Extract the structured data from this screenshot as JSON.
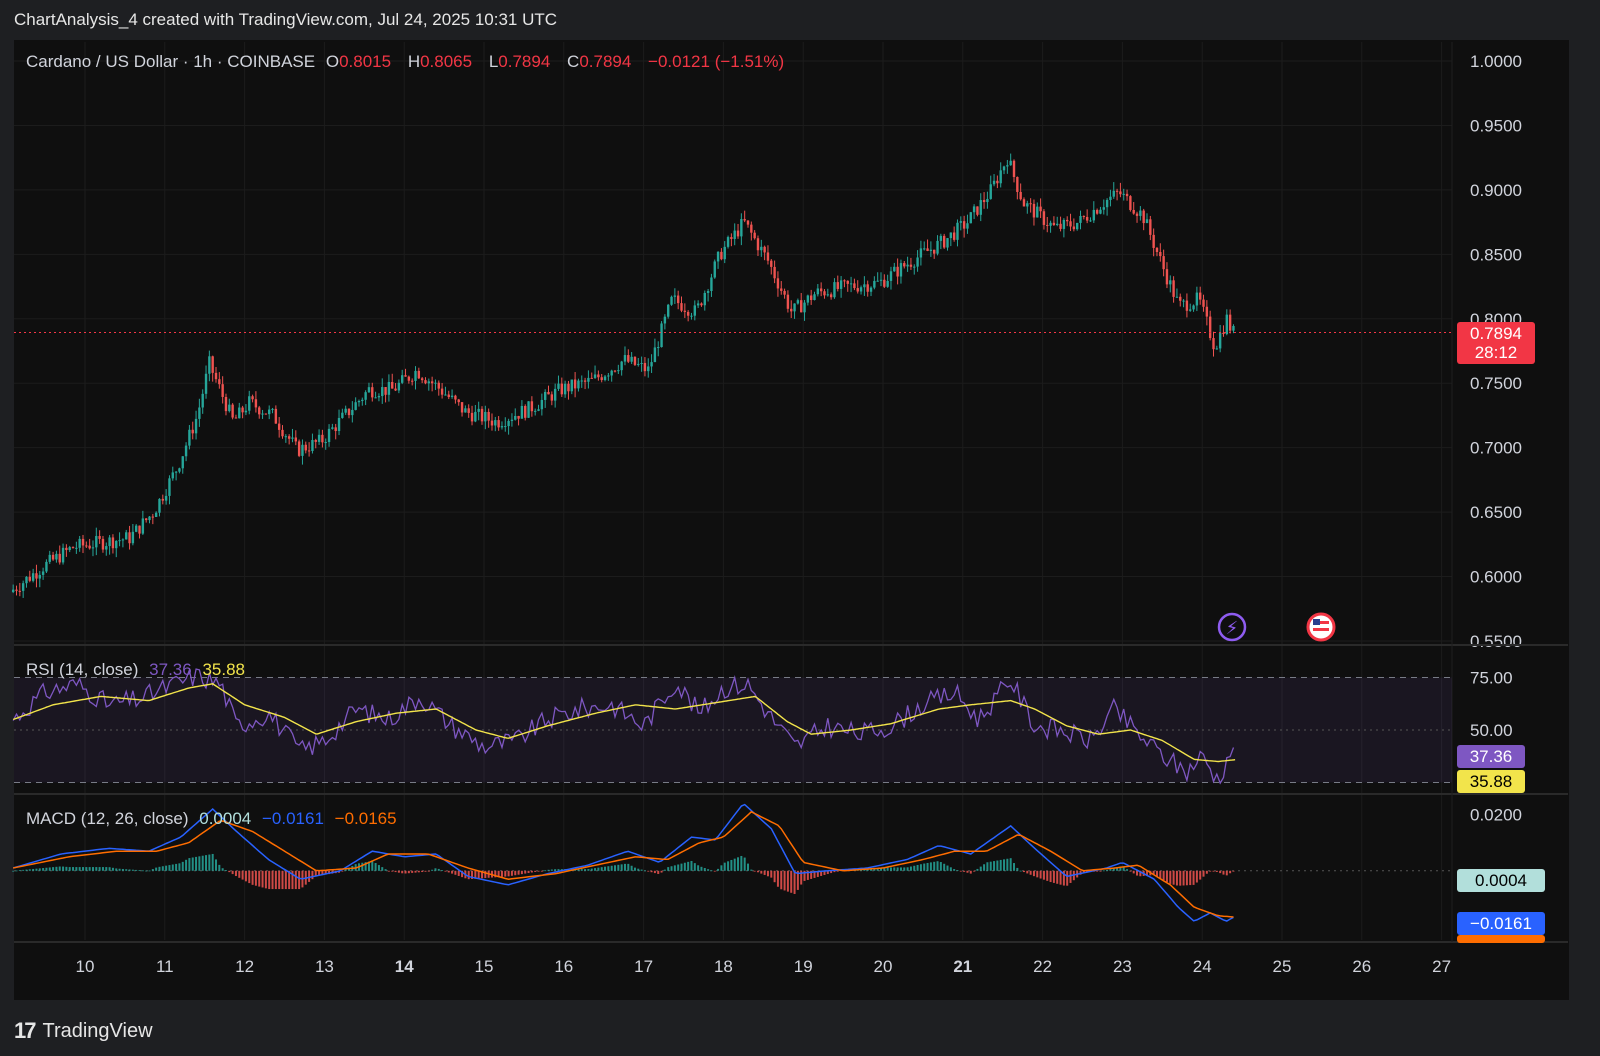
{
  "header": {
    "attribution": "ChartAnalysis_4 created with TradingView.com, Jul 24, 2025 10:31 UTC"
  },
  "legend": {
    "symbol": "Cardano / US Dollar · 1h · COINBASE",
    "o_label": "O",
    "o_value": "0.8015",
    "h_label": "H",
    "h_value": "0.8065",
    "l_label": "L",
    "l_value": "0.7894",
    "c_label": "C",
    "c_value": "0.7894",
    "change": "−0.0121 (−1.51%)"
  },
  "price_badge": {
    "price": "0.7894",
    "countdown": "28:12"
  },
  "rsi": {
    "label": "RSI (14, close)",
    "value": "37.36",
    "ma_value": "35.88",
    "levels": [
      "75.00",
      "50.00"
    ]
  },
  "macd": {
    "label": "MACD (12, 26, close)",
    "hist_value": "0.0004",
    "macd_value": "−0.0161",
    "signal_value": "−0.0165",
    "levels": [
      "0.0200"
    ]
  },
  "footer": {
    "brand": "TradingView",
    "logo_text": "17"
  },
  "colors": {
    "up": "#26a69a",
    "down": "#ef5350",
    "rsi": "#7e57c2",
    "rsi_ma": "#f2e44b",
    "macd": "#2962ff",
    "signal": "#ff6d00",
    "hist_pos": "#26a69a",
    "hist_neg": "#ef5350",
    "price_line": "#f23645"
  },
  "chart_data": {
    "type": "candlestick",
    "title": "Cardano / US Dollar · 1h · COINBASE",
    "x_tick_labels": [
      "10",
      "11",
      "12",
      "13",
      "14",
      "15",
      "16",
      "17",
      "18",
      "19",
      "20",
      "21",
      "22",
      "23",
      "24",
      "25",
      "26",
      "27"
    ],
    "bold_x_ticks": [
      "14",
      "21"
    ],
    "y_tick_labels": [
      "1.0000",
      "0.9500",
      "0.9000",
      "0.8500",
      "0.8000",
      "0.7500",
      "0.7000",
      "0.6500",
      "0.6000",
      "0.5500"
    ],
    "ylim": [
      0.55,
      1.0
    ],
    "current_price": 0.7894,
    "price_path": [
      {
        "day": 9.1,
        "price": 0.588
      },
      {
        "day": 9.5,
        "price": 0.607
      },
      {
        "day": 9.9,
        "price": 0.623
      },
      {
        "day": 10.3,
        "price": 0.627
      },
      {
        "day": 10.6,
        "price": 0.63
      },
      {
        "day": 10.9,
        "price": 0.65
      },
      {
        "day": 11.2,
        "price": 0.685
      },
      {
        "day": 11.45,
        "price": 0.725
      },
      {
        "day": 11.6,
        "price": 0.765
      },
      {
        "day": 11.9,
        "price": 0.72
      },
      {
        "day": 12.1,
        "price": 0.735
      },
      {
        "day": 12.4,
        "price": 0.725
      },
      {
        "day": 12.7,
        "price": 0.698
      },
      {
        "day": 13.0,
        "price": 0.705
      },
      {
        "day": 13.3,
        "price": 0.725
      },
      {
        "day": 13.6,
        "price": 0.745
      },
      {
        "day": 13.9,
        "price": 0.745
      },
      {
        "day": 14.2,
        "price": 0.76
      },
      {
        "day": 14.5,
        "price": 0.745
      },
      {
        "day": 14.8,
        "price": 0.728
      },
      {
        "day": 15.2,
        "price": 0.72
      },
      {
        "day": 15.6,
        "price": 0.73
      },
      {
        "day": 16.0,
        "price": 0.745
      },
      {
        "day": 16.4,
        "price": 0.752
      },
      {
        "day": 16.8,
        "price": 0.768
      },
      {
        "day": 17.1,
        "price": 0.76
      },
      {
        "day": 17.4,
        "price": 0.815
      },
      {
        "day": 17.7,
        "price": 0.805
      },
      {
        "day": 18.0,
        "price": 0.85
      },
      {
        "day": 18.3,
        "price": 0.875
      },
      {
        "day": 18.6,
        "price": 0.845
      },
      {
        "day": 18.9,
        "price": 0.805
      },
      {
        "day": 19.2,
        "price": 0.82
      },
      {
        "day": 19.6,
        "price": 0.825
      },
      {
        "day": 20.0,
        "price": 0.828
      },
      {
        "day": 20.4,
        "price": 0.845
      },
      {
        "day": 20.8,
        "price": 0.86
      },
      {
        "day": 21.1,
        "price": 0.875
      },
      {
        "day": 21.4,
        "price": 0.9
      },
      {
        "day": 21.6,
        "price": 0.925
      },
      {
        "day": 21.8,
        "price": 0.89
      },
      {
        "day": 22.0,
        "price": 0.88
      },
      {
        "day": 22.2,
        "price": 0.87
      },
      {
        "day": 22.5,
        "price": 0.875
      },
      {
        "day": 22.8,
        "price": 0.89
      },
      {
        "day": 23.0,
        "price": 0.898
      },
      {
        "day": 23.3,
        "price": 0.88
      },
      {
        "day": 23.55,
        "price": 0.84
      },
      {
        "day": 23.75,
        "price": 0.81
      },
      {
        "day": 24.0,
        "price": 0.815
      },
      {
        "day": 24.2,
        "price": 0.778
      },
      {
        "day": 24.35,
        "price": 0.8
      },
      {
        "day": 24.42,
        "price": 0.7894
      }
    ],
    "rsi_ylim": [
      20,
      90
    ],
    "rsi_path": [
      {
        "day": 9.1,
        "value": 55
      },
      {
        "day": 9.5,
        "value": 68
      },
      {
        "day": 9.9,
        "value": 72
      },
      {
        "day": 10.3,
        "value": 62
      },
      {
        "day": 10.7,
        "value": 65
      },
      {
        "day": 11.0,
        "value": 70
      },
      {
        "day": 11.4,
        "value": 76
      },
      {
        "day": 11.7,
        "value": 72
      },
      {
        "day": 11.9,
        "value": 52
      },
      {
        "day": 12.3,
        "value": 58
      },
      {
        "day": 12.7,
        "value": 40
      },
      {
        "day": 13.0,
        "value": 45
      },
      {
        "day": 13.4,
        "value": 60
      },
      {
        "day": 13.8,
        "value": 55
      },
      {
        "day": 14.2,
        "value": 66
      },
      {
        "day": 14.6,
        "value": 52
      },
      {
        "day": 15.0,
        "value": 42
      },
      {
        "day": 15.4,
        "value": 45
      },
      {
        "day": 15.8,
        "value": 55
      },
      {
        "day": 16.2,
        "value": 60
      },
      {
        "day": 16.6,
        "value": 62
      },
      {
        "day": 17.0,
        "value": 52
      },
      {
        "day": 17.4,
        "value": 73
      },
      {
        "day": 17.7,
        "value": 58
      },
      {
        "day": 18.0,
        "value": 70
      },
      {
        "day": 18.3,
        "value": 72
      },
      {
        "day": 18.6,
        "value": 56
      },
      {
        "day": 18.9,
        "value": 42
      },
      {
        "day": 19.3,
        "value": 52
      },
      {
        "day": 19.7,
        "value": 48
      },
      {
        "day": 20.1,
        "value": 52
      },
      {
        "day": 20.5,
        "value": 62
      },
      {
        "day": 20.9,
        "value": 68
      },
      {
        "day": 21.2,
        "value": 55
      },
      {
        "day": 21.6,
        "value": 74
      },
      {
        "day": 21.9,
        "value": 52
      },
      {
        "day": 22.2,
        "value": 50
      },
      {
        "day": 22.6,
        "value": 45
      },
      {
        "day": 22.9,
        "value": 60
      },
      {
        "day": 23.2,
        "value": 48
      },
      {
        "day": 23.5,
        "value": 38
      },
      {
        "day": 23.8,
        "value": 30
      },
      {
        "day": 24.0,
        "value": 38
      },
      {
        "day": 24.2,
        "value": 26
      },
      {
        "day": 24.35,
        "value": 40
      },
      {
        "day": 24.42,
        "value": 37.36
      }
    ],
    "rsi_ma_path": [
      {
        "day": 9.1,
        "value": 55
      },
      {
        "day": 9.6,
        "value": 62
      },
      {
        "day": 10.2,
        "value": 66
      },
      {
        "day": 10.8,
        "value": 64
      },
      {
        "day": 11.3,
        "value": 70
      },
      {
        "day": 11.6,
        "value": 72
      },
      {
        "day": 12.0,
        "value": 62
      },
      {
        "day": 12.5,
        "value": 56
      },
      {
        "day": 12.9,
        "value": 48
      },
      {
        "day": 13.4,
        "value": 54
      },
      {
        "day": 13.9,
        "value": 58
      },
      {
        "day": 14.4,
        "value": 60
      },
      {
        "day": 14.9,
        "value": 50
      },
      {
        "day": 15.3,
        "value": 46
      },
      {
        "day": 15.8,
        "value": 52
      },
      {
        "day": 16.4,
        "value": 58
      },
      {
        "day": 16.9,
        "value": 62
      },
      {
        "day": 17.4,
        "value": 60
      },
      {
        "day": 17.9,
        "value": 63
      },
      {
        "day": 18.4,
        "value": 66
      },
      {
        "day": 18.8,
        "value": 54
      },
      {
        "day": 19.1,
        "value": 48
      },
      {
        "day": 19.6,
        "value": 50
      },
      {
        "day": 20.1,
        "value": 53
      },
      {
        "day": 20.7,
        "value": 60
      },
      {
        "day": 21.1,
        "value": 62
      },
      {
        "day": 21.6,
        "value": 64
      },
      {
        "day": 21.9,
        "value": 60
      },
      {
        "day": 22.3,
        "value": 52
      },
      {
        "day": 22.7,
        "value": 48
      },
      {
        "day": 23.1,
        "value": 50
      },
      {
        "day": 23.5,
        "value": 45
      },
      {
        "day": 23.9,
        "value": 36
      },
      {
        "day": 24.2,
        "value": 35
      },
      {
        "day": 24.42,
        "value": 35.88
      }
    ],
    "macd_ylim": [
      -0.025,
      0.027
    ],
    "macd_path": [
      {
        "day": 9.1,
        "value": 0.001
      },
      {
        "day": 9.7,
        "value": 0.006
      },
      {
        "day": 10.3,
        "value": 0.008
      },
      {
        "day": 10.8,
        "value": 0.007
      },
      {
        "day": 11.2,
        "value": 0.012
      },
      {
        "day": 11.6,
        "value": 0.022
      },
      {
        "day": 11.9,
        "value": 0.014
      },
      {
        "day": 12.3,
        "value": 0.004
      },
      {
        "day": 12.7,
        "value": -0.003
      },
      {
        "day": 13.2,
        "value": 0.0
      },
      {
        "day": 13.6,
        "value": 0.007
      },
      {
        "day": 14.0,
        "value": 0.005
      },
      {
        "day": 14.4,
        "value": 0.006
      },
      {
        "day": 14.8,
        "value": -0.002
      },
      {
        "day": 15.3,
        "value": -0.005
      },
      {
        "day": 15.8,
        "value": -0.001
      },
      {
        "day": 16.3,
        "value": 0.002
      },
      {
        "day": 16.8,
        "value": 0.007
      },
      {
        "day": 17.2,
        "value": 0.003
      },
      {
        "day": 17.6,
        "value": 0.012
      },
      {
        "day": 17.9,
        "value": 0.011
      },
      {
        "day": 18.25,
        "value": 0.024
      },
      {
        "day": 18.6,
        "value": 0.015
      },
      {
        "day": 18.9,
        "value": -0.001
      },
      {
        "day": 19.3,
        "value": 0.0
      },
      {
        "day": 19.8,
        "value": 0.001
      },
      {
        "day": 20.3,
        "value": 0.004
      },
      {
        "day": 20.7,
        "value": 0.009
      },
      {
        "day": 21.1,
        "value": 0.006
      },
      {
        "day": 21.6,
        "value": 0.016
      },
      {
        "day": 21.9,
        "value": 0.008
      },
      {
        "day": 22.3,
        "value": -0.002
      },
      {
        "day": 22.8,
        "value": 0.001
      },
      {
        "day": 23.0,
        "value": 0.003
      },
      {
        "day": 23.4,
        "value": -0.003
      },
      {
        "day": 23.7,
        "value": -0.013
      },
      {
        "day": 23.9,
        "value": -0.018
      },
      {
        "day": 24.1,
        "value": -0.015
      },
      {
        "day": 24.3,
        "value": -0.018
      },
      {
        "day": 24.42,
        "value": -0.0161
      }
    ],
    "signal_path": [
      {
        "day": 9.1,
        "value": 0.001
      },
      {
        "day": 9.8,
        "value": 0.005
      },
      {
        "day": 10.4,
        "value": 0.007
      },
      {
        "day": 10.9,
        "value": 0.007
      },
      {
        "day": 11.3,
        "value": 0.01
      },
      {
        "day": 11.7,
        "value": 0.018
      },
      {
        "day": 12.1,
        "value": 0.014
      },
      {
        "day": 12.5,
        "value": 0.007
      },
      {
        "day": 12.9,
        "value": 0.0
      },
      {
        "day": 13.4,
        "value": 0.001
      },
      {
        "day": 13.8,
        "value": 0.006
      },
      {
        "day": 14.3,
        "value": 0.006
      },
      {
        "day": 14.8,
        "value": 0.001
      },
      {
        "day": 15.3,
        "value": -0.003
      },
      {
        "day": 15.9,
        "value": -0.001
      },
      {
        "day": 16.4,
        "value": 0.002
      },
      {
        "day": 16.9,
        "value": 0.005
      },
      {
        "day": 17.3,
        "value": 0.004
      },
      {
        "day": 17.7,
        "value": 0.01
      },
      {
        "day": 18.0,
        "value": 0.012
      },
      {
        "day": 18.35,
        "value": 0.021
      },
      {
        "day": 18.7,
        "value": 0.016
      },
      {
        "day": 19.0,
        "value": 0.003
      },
      {
        "day": 19.5,
        "value": 0.0
      },
      {
        "day": 20.0,
        "value": 0.001
      },
      {
        "day": 20.5,
        "value": 0.004
      },
      {
        "day": 20.9,
        "value": 0.007
      },
      {
        "day": 21.3,
        "value": 0.007
      },
      {
        "day": 21.7,
        "value": 0.013
      },
      {
        "day": 22.1,
        "value": 0.007
      },
      {
        "day": 22.5,
        "value": 0.0
      },
      {
        "day": 22.9,
        "value": 0.001
      },
      {
        "day": 23.2,
        "value": 0.002
      },
      {
        "day": 23.6,
        "value": -0.005
      },
      {
        "day": 23.9,
        "value": -0.013
      },
      {
        "day": 24.2,
        "value": -0.016
      },
      {
        "day": 24.42,
        "value": -0.0165
      }
    ]
  }
}
